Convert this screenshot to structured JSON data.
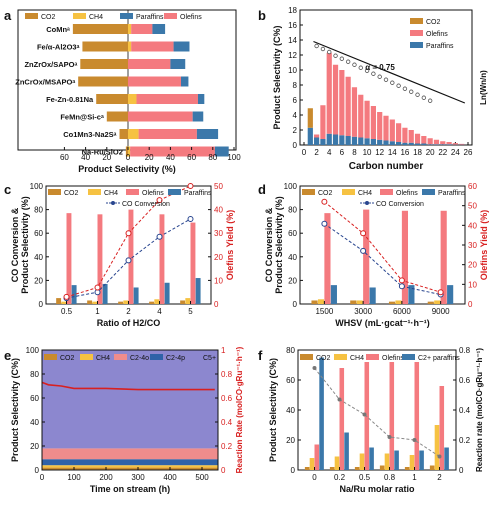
{
  "colors": {
    "co2": "#c98a2e",
    "ch4": "#f6c242",
    "paraffins": "#3b78aa",
    "olefins": "#f47a7f",
    "c2_4o": "#ef8c8c",
    "c2_4p": "#2f62a8",
    "c5": "#8c87cf",
    "conv": "#28458f",
    "yield": "#d82020"
  },
  "chart_data": [
    {
      "panel": "a",
      "type": "bar",
      "orientation": "horizontal",
      "xlabel": "Product Selectivity (%)",
      "xticks": [
        "60",
        "40",
        "20",
        "0",
        "20",
        "40",
        "60",
        "80",
        "100"
      ],
      "legend": [
        "CO2",
        "CH4",
        "Paraffins",
        "Olefins"
      ],
      "categories": [
        "CoMn",
        "Fe/α-Al2O3",
        "ZnZrOx/SAPO",
        "ZnCrOx/MSAPO",
        "Fe-Zn-0.81Na",
        "FeMn@Si-c",
        "Co1Mn3-Na2S",
        "Na-Ru/SiO2"
      ],
      "category_suffix": [
        "a",
        "a",
        "a",
        "a",
        "",
        "a",
        "a",
        ""
      ],
      "co2": [
        52,
        43,
        45,
        47,
        30,
        20,
        8,
        2
      ],
      "ch4": [
        3,
        3,
        0,
        0,
        8,
        0,
        10,
        2
      ],
      "olefins": [
        20,
        40,
        40,
        50,
        58,
        61,
        55,
        80
      ],
      "paraffins": [
        12,
        15,
        14,
        7,
        6,
        10,
        20,
        13
      ]
    },
    {
      "panel": "b",
      "type": "bar",
      "xlabel": "Carbon number",
      "ylabel": "Product Selectivity (C%)",
      "y2label": "Ln(Wn/n)",
      "annotation": "α = 0.75",
      "xticks": [
        0,
        2,
        4,
        6,
        8,
        10,
        12,
        14,
        16,
        18,
        20,
        22,
        24,
        26
      ],
      "ylim": [
        0,
        18
      ],
      "yticks": [
        0,
        2,
        4,
        6,
        8,
        10,
        12,
        14,
        16,
        18
      ],
      "legend": [
        "CO2",
        "Olefins",
        "Paraffins"
      ],
      "x": [
        1,
        2,
        3,
        4,
        5,
        6,
        7,
        8,
        9,
        10,
        11,
        12,
        13,
        14,
        15,
        16,
        17,
        18,
        19,
        20,
        21,
        22,
        23,
        24,
        25
      ],
      "co2": [
        2.6,
        0,
        0,
        0,
        0,
        0,
        0,
        0,
        0,
        0,
        0,
        0,
        0,
        0,
        0,
        0,
        0,
        0,
        0,
        0,
        0,
        0,
        0,
        0,
        0
      ],
      "olefins": [
        0,
        0.4,
        4.5,
        10.8,
        9.3,
        8.7,
        7.9,
        6.6,
        5.7,
        5.0,
        4.4,
        3.7,
        3.3,
        2.9,
        2.5,
        2.0,
        1.7,
        1.3,
        1.0,
        0.8,
        0.6,
        0.4,
        0.3,
        0.2,
        0.1
      ],
      "paraffins": [
        2.3,
        1.0,
        0.8,
        1.5,
        1.4,
        1.3,
        1.2,
        1.1,
        1.0,
        0.9,
        0.8,
        0.7,
        0.6,
        0.5,
        0.4,
        0.3,
        0.3,
        0.2,
        0.2,
        0.1,
        0.1,
        0.1,
        0.1,
        0.05,
        0.05
      ],
      "asf_points": [
        13.4,
        13.0,
        12.6,
        12.1,
        11.7,
        11.3,
        10.9,
        10.5,
        10.1,
        9.7,
        9.3,
        8.9,
        8.5,
        8.1,
        7.7,
        7.3,
        6.9,
        6.5,
        6.1
      ]
    },
    {
      "panel": "c",
      "type": "bar",
      "xlabel": "Ratio of H2/CO",
      "ylabel": "CO Conversion & Product Selectivity (%)",
      "y2label": "Olefins Yield (%)",
      "categories": [
        "0.5",
        "1",
        "2",
        "4",
        "5"
      ],
      "ylim": [
        0,
        100
      ],
      "yticks": [
        0,
        20,
        40,
        60,
        80,
        100
      ],
      "y2lim": [
        0,
        50
      ],
      "y2ticks": [
        0,
        10,
        20,
        30,
        40,
        50
      ],
      "legend": [
        "CO2",
        "CH4",
        "Olefins",
        "Paraffins",
        "CO Conversion"
      ],
      "co2": [
        5,
        3,
        2,
        2,
        3
      ],
      "ch4": [
        2,
        2,
        3,
        4,
        5
      ],
      "olefins": [
        77,
        76,
        80,
        76,
        69
      ],
      "paraffins": [
        16,
        17,
        14,
        18,
        22
      ],
      "conversion": [
        5,
        10,
        37,
        57,
        72
      ],
      "yield": [
        3,
        7,
        30,
        44,
        50
      ]
    },
    {
      "panel": "d",
      "type": "bar",
      "xlabel": "WHSV (mL·gcat⁻¹·h⁻¹)",
      "ylabel": "CO Conversion & Product Selectivity (%)",
      "y2label": "Olefins Yield (%)",
      "categories": [
        "1500",
        "3000",
        "6000",
        "9000"
      ],
      "ylim": [
        0,
        100
      ],
      "yticks": [
        0,
        20,
        40,
        60,
        80,
        100
      ],
      "y2lim": [
        0,
        60
      ],
      "y2ticks": [
        0,
        10,
        20,
        30,
        40,
        50,
        60
      ],
      "legend": [
        "CO2",
        "CH4",
        "Olefins",
        "Paraffins",
        "CO Conversion"
      ],
      "co2": [
        3,
        3,
        2,
        2
      ],
      "ch4": [
        4,
        3,
        3,
        3
      ],
      "olefins": [
        77,
        80,
        79,
        79
      ],
      "paraffins": [
        16,
        14,
        16,
        16
      ],
      "conversion": [
        68,
        45,
        15,
        8
      ],
      "yield": [
        52,
        36,
        12,
        6
      ]
    },
    {
      "panel": "e",
      "type": "area",
      "xlabel": "Time on stream (h)",
      "ylabel": "Product Selectivity (C%)",
      "y2label": "Reaction Rate (molCO·gRu⁻¹·h⁻¹)",
      "xlim": [
        0,
        550
      ],
      "xticks": [
        0,
        100,
        200,
        300,
        400,
        500
      ],
      "ylim": [
        0,
        100
      ],
      "yticks": [
        0,
        20,
        40,
        60,
        80,
        100
      ],
      "y2lim": [
        0,
        1.0
      ],
      "y2ticks": [
        0,
        0.2,
        0.4,
        0.6,
        0.8,
        1.0
      ],
      "legend": [
        "CO2",
        "CH4",
        "C2-4o",
        "C2-4p",
        "C5+"
      ],
      "co2": 2,
      "ch4": 2,
      "c2_4p": 5,
      "c2_4o": 9,
      "c5": 82,
      "rate_x": [
        0,
        20,
        60,
        100,
        200,
        300,
        400,
        500,
        540
      ],
      "rate_y": [
        0.73,
        0.71,
        0.7,
        0.68,
        0.68,
        0.67,
        0.67,
        0.67,
        0.67
      ]
    },
    {
      "panel": "f",
      "type": "bar",
      "xlabel": "Na/Ru molar ratio",
      "ylabel": "Product Selectivity (C%)",
      "y2label": "Reaction rate (molCO·gRu⁻¹·h⁻¹)",
      "categories": [
        "0",
        "0.2",
        "0.5",
        "0.8",
        "1",
        "2"
      ],
      "ylim": [
        0,
        80
      ],
      "yticks": [
        0,
        20,
        40,
        60,
        80
      ],
      "y2lim": [
        0,
        0.8
      ],
      "y2ticks": [
        0,
        0.2,
        0.4,
        0.6,
        0.8
      ],
      "legend": [
        "CO2",
        "CH4",
        "Olefins",
        "C2+ paraffins"
      ],
      "co2": [
        2,
        2,
        2,
        3,
        2,
        3
      ],
      "ch4": [
        8,
        9,
        11,
        11,
        10,
        30
      ],
      "olefins": [
        17,
        68,
        72,
        72,
        72,
        56
      ],
      "paraffins": [
        75,
        25,
        15,
        13,
        13,
        15
      ],
      "rate": [
        0.68,
        0.47,
        0.37,
        0.22,
        0.2,
        0.09
      ]
    }
  ]
}
